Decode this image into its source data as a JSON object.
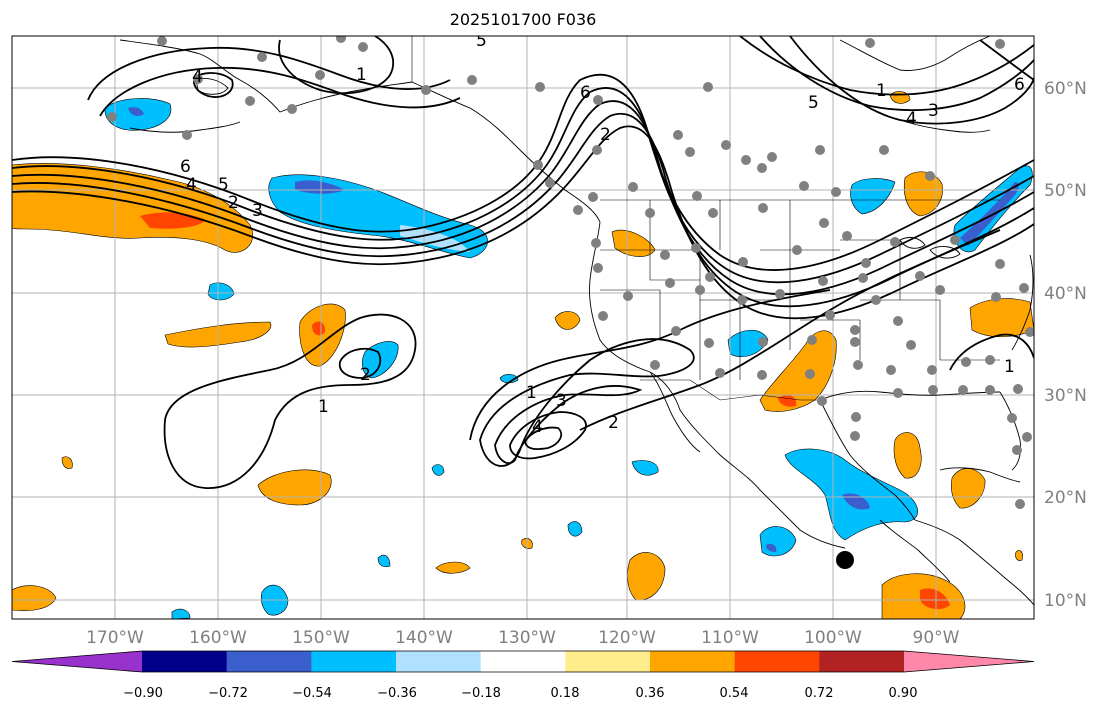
{
  "title": "2025101700 F036",
  "lon_labels": [
    "170°W",
    "160°W",
    "150°W",
    "140°W",
    "130°W",
    "120°W",
    "110°W",
    "100°W",
    "90°W"
  ],
  "lat_labels": [
    "60°N",
    "50°N",
    "40°N",
    "30°N",
    "20°N",
    "10°N"
  ],
  "contour_labels": [
    "6",
    "4",
    "5",
    "2",
    "3",
    "1",
    "2",
    "1",
    "3",
    "4",
    "2",
    "5",
    "6",
    "4",
    "5",
    "6",
    "4",
    "3",
    "1",
    "1",
    "1",
    "2"
  ],
  "colorbar": {
    "tick_labels": [
      "−0.90",
      "−0.72",
      "−0.54",
      "−0.36",
      "−0.18",
      "0.18",
      "0.36",
      "0.54",
      "0.72",
      "0.90"
    ],
    "colors": [
      "#9932CC",
      "#00008B",
      "#3A5FCD",
      "#00BFFF",
      "#B0E2FF",
      "#FFFFFF",
      "#FFEC8B",
      "#FFA500",
      "#FF4500",
      "#B22222",
      "#FF88AA"
    ]
  },
  "colors": {
    "grid": "#b3b3b3",
    "coast": "#000000",
    "station": "#808080",
    "lat_label": "#808080"
  }
}
